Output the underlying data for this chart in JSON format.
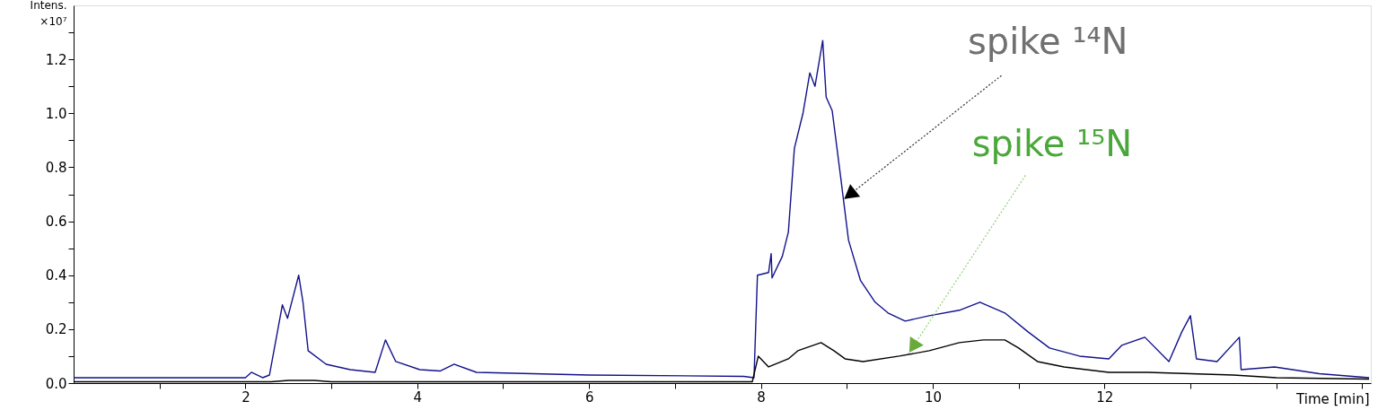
{
  "chart_data": {
    "type": "line",
    "xlabel": "Time [min]",
    "ylabel": "Intens.\n×10⁷",
    "xlim": [
      0,
      15.1
    ],
    "ylim": [
      0,
      1.4
    ],
    "xticks": [
      {
        "value": 1,
        "label": null
      },
      2,
      {
        "value": 3,
        "label": null
      },
      4,
      {
        "value": 5,
        "label": null
      },
      6,
      {
        "value": 7,
        "label": null
      },
      8,
      {
        "value": 9,
        "label": null
      },
      10,
      {
        "value": 11,
        "label": null
      },
      12,
      {
        "value": 13,
        "label": null
      },
      {
        "value": 14,
        "label": null
      },
      {
        "value": 15,
        "label": null
      }
    ],
    "yticks": [
      {
        "value": 0,
        "label": "0.0"
      },
      {
        "value": 0.1,
        "label": null
      },
      {
        "value": 0.2,
        "label": "0.2"
      },
      {
        "value": 0.3,
        "label": null
      },
      {
        "value": 0.4,
        "label": "0.4"
      },
      {
        "value": 0.5,
        "label": null
      },
      {
        "value": 0.6,
        "label": "0.6"
      },
      {
        "value": 0.7,
        "label": null
      },
      {
        "value": 0.8,
        "label": "0.8"
      },
      {
        "value": 0.9,
        "label": null
      },
      {
        "value": 1,
        "label": "1.0"
      },
      {
        "value": 1.1,
        "label": null
      },
      {
        "value": 1.2,
        "label": "1.2"
      },
      {
        "value": 1.3,
        "label": null
      }
    ],
    "grid": false,
    "series": [
      {
        "color": "#12128c",
        "x": [
          0,
          2.0,
          2.07,
          2.2,
          2.28,
          2.43,
          2.49,
          2.62,
          2.67,
          2.73,
          2.94,
          3.22,
          3.51,
          3.63,
          3.75,
          4.03,
          4.27,
          4.43,
          4.69,
          6.0,
          7.8,
          7.92,
          7.96,
          8.09,
          8.12,
          8.13,
          8.25,
          8.32,
          8.39,
          8.49,
          8.57,
          8.63,
          8.72,
          8.76,
          8.83,
          8.93,
          9.02,
          9.16,
          9.33,
          9.48,
          9.68,
          9.96,
          10.31,
          10.55,
          10.84,
          11.11,
          11.36,
          11.71,
          12.05,
          12.2,
          12.47,
          12.75,
          12.9,
          13.0,
          13.07,
          13.31,
          13.57,
          13.59,
          13.98,
          14.5,
          15.08
        ],
        "values": [
          0.02,
          0.02,
          0.04,
          0.02,
          0.03,
          0.29,
          0.24,
          0.4,
          0.3,
          0.12,
          0.07,
          0.05,
          0.04,
          0.16,
          0.08,
          0.05,
          0.045,
          0.07,
          0.04,
          0.03,
          0.025,
          0.02,
          0.4,
          0.41,
          0.48,
          0.39,
          0.47,
          0.56,
          0.87,
          1.0,
          1.15,
          1.1,
          1.27,
          1.06,
          1.01,
          0.76,
          0.53,
          0.38,
          0.3,
          0.26,
          0.23,
          0.25,
          0.27,
          0.3,
          0.26,
          0.19,
          0.13,
          0.1,
          0.09,
          0.14,
          0.17,
          0.08,
          0.19,
          0.25,
          0.09,
          0.08,
          0.17,
          0.05,
          0.06,
          0.035,
          0.02
        ]
      },
      {
        "color": "#000000",
        "x": [
          0,
          2.3,
          2.5,
          2.8,
          3.0,
          7.9,
          7.97,
          8.09,
          8.32,
          8.43,
          8.7,
          8.85,
          8.98,
          9.19,
          9.61,
          9.96,
          10.31,
          10.59,
          10.84,
          11.0,
          11.22,
          11.53,
          12.05,
          12.5,
          13.5,
          14.0,
          15.08
        ],
        "values": [
          0.005,
          0.005,
          0.01,
          0.01,
          0.005,
          0.005,
          0.1,
          0.06,
          0.09,
          0.12,
          0.15,
          0.12,
          0.09,
          0.08,
          0.1,
          0.12,
          0.15,
          0.16,
          0.16,
          0.13,
          0.08,
          0.06,
          0.04,
          0.04,
          0.03,
          0.02,
          0.015
        ]
      }
    ],
    "annotations": [
      {
        "text": "spike ¹⁴N",
        "x": 8.96,
        "y": 0.68
      },
      {
        "text": "spike ¹⁵N",
        "x": 9.72,
        "y": 0.11
      }
    ]
  }
}
